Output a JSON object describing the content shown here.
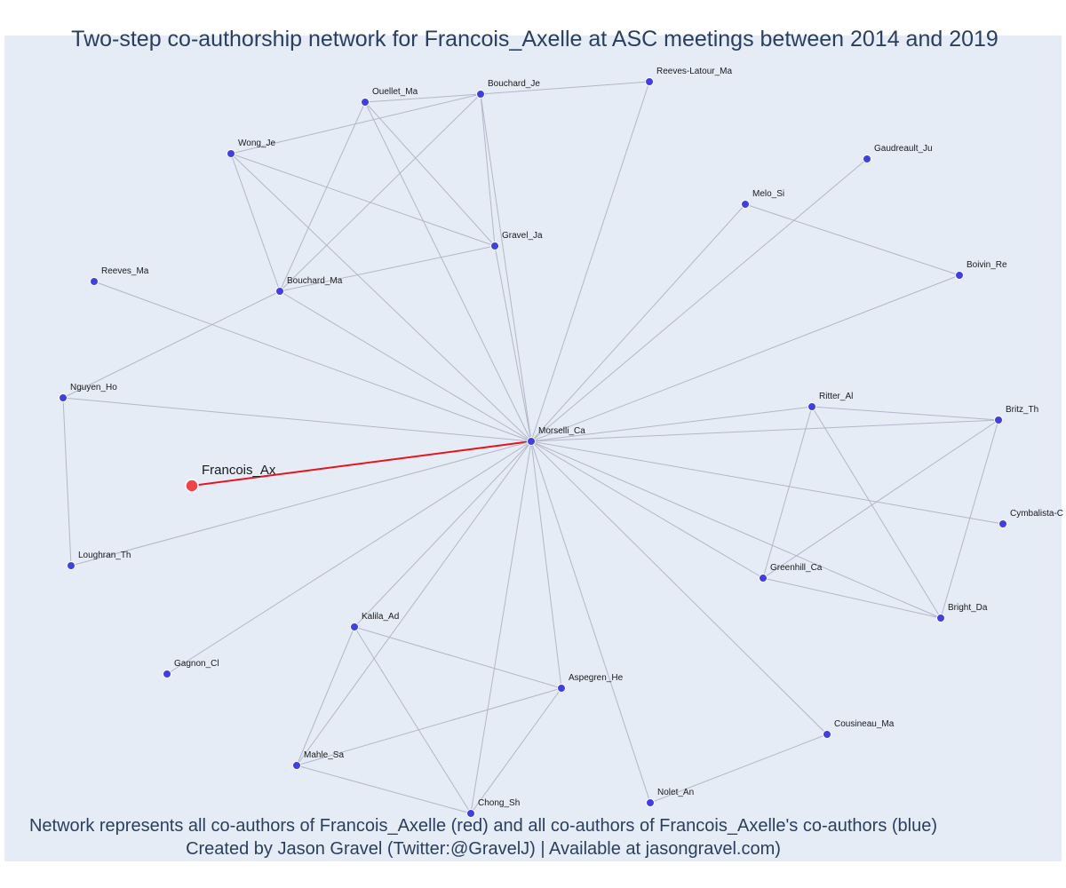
{
  "title": "Two-step co-authorship network for Francois_Axelle at ASC meetings between 2014 and 2019",
  "caption": {
    "line1": "Network represents all co-authors of Francois_Axelle (red) and all co-authors of Francois_Axelle's co-authors (blue)",
    "line2": "Created by Jason Gravel (Twitter:@GravelJ) | Available at jasongravel.com)"
  },
  "colors": {
    "focal": "#f0444a",
    "focal_edge": "#e8141b",
    "node": "#3f3fe8",
    "edge": "#b3b6c8",
    "background": "#e5ecf6"
  },
  "chart_data": {
    "type": "network",
    "focal_node": "Francois_Ax",
    "nodes": [
      "Francois_Ax",
      "Morselli_Ca",
      "Ouellet_Ma",
      "Bouchard_Je",
      "Reeves-Latour_Ma",
      "Wong_Je",
      "Gravel_Ja",
      "Bouchard_Ma",
      "Reeves_Ma",
      "Nguyen_Ho",
      "Loughran_Th",
      "Gagnon_Cl",
      "Kalila_Ad",
      "Mahle_Sa",
      "Chong_Sh",
      "Aspegren_He",
      "Nolet_An",
      "Cousineau_Ma",
      "Greenhill_Ca",
      "Bright_Da",
      "Ritter_Al",
      "Britz_Th",
      "Cymbalista-C",
      "Boivin_Re",
      "Melo_Si",
      "Gaudreault_Ju"
    ],
    "edges": [
      [
        "Francois_Ax",
        "Morselli_Ca"
      ],
      [
        "Morselli_Ca",
        "Ouellet_Ma"
      ],
      [
        "Morselli_Ca",
        "Bouchard_Je"
      ],
      [
        "Morselli_Ca",
        "Reeves-Latour_Ma"
      ],
      [
        "Morselli_Ca",
        "Wong_Je"
      ],
      [
        "Morselli_Ca",
        "Gravel_Ja"
      ],
      [
        "Morselli_Ca",
        "Bouchard_Ma"
      ],
      [
        "Morselli_Ca",
        "Reeves_Ma"
      ],
      [
        "Morselli_Ca",
        "Nguyen_Ho"
      ],
      [
        "Morselli_Ca",
        "Loughran_Th"
      ],
      [
        "Morselli_Ca",
        "Gagnon_Cl"
      ],
      [
        "Morselli_Ca",
        "Kalila_Ad"
      ],
      [
        "Morselli_Ca",
        "Mahle_Sa"
      ],
      [
        "Morselli_Ca",
        "Chong_Sh"
      ],
      [
        "Morselli_Ca",
        "Aspegren_He"
      ],
      [
        "Morselli_Ca",
        "Nolet_An"
      ],
      [
        "Morselli_Ca",
        "Cousineau_Ma"
      ],
      [
        "Morselli_Ca",
        "Greenhill_Ca"
      ],
      [
        "Morselli_Ca",
        "Bright_Da"
      ],
      [
        "Morselli_Ca",
        "Ritter_Al"
      ],
      [
        "Morselli_Ca",
        "Britz_Th"
      ],
      [
        "Morselli_Ca",
        "Cymbalista-C"
      ],
      [
        "Morselli_Ca",
        "Boivin_Re"
      ],
      [
        "Morselli_Ca",
        "Melo_Si"
      ],
      [
        "Morselli_Ca",
        "Gaudreault_Ju"
      ],
      [
        "Ouellet_Ma",
        "Bouchard_Je"
      ],
      [
        "Ouellet_Ma",
        "Gravel_Ja"
      ],
      [
        "Ouellet_Ma",
        "Bouchard_Ma"
      ],
      [
        "Bouchard_Je",
        "Reeves-Latour_Ma"
      ],
      [
        "Bouchard_Je",
        "Wong_Je"
      ],
      [
        "Bouchard_Je",
        "Gravel_Ja"
      ],
      [
        "Bouchard_Je",
        "Bouchard_Ma"
      ],
      [
        "Wong_Je",
        "Gravel_Ja"
      ],
      [
        "Wong_Je",
        "Bouchard_Ma"
      ],
      [
        "Gravel_Ja",
        "Bouchard_Ma"
      ],
      [
        "Bouchard_Ma",
        "Nguyen_Ho"
      ],
      [
        "Nguyen_Ho",
        "Loughran_Th"
      ],
      [
        "Melo_Si",
        "Boivin_Re"
      ],
      [
        "Ritter_Al",
        "Britz_Th"
      ],
      [
        "Ritter_Al",
        "Greenhill_Ca"
      ],
      [
        "Ritter_Al",
        "Bright_Da"
      ],
      [
        "Britz_Th",
        "Greenhill_Ca"
      ],
      [
        "Britz_Th",
        "Bright_Da"
      ],
      [
        "Greenhill_Ca",
        "Bright_Da"
      ],
      [
        "Kalila_Ad",
        "Aspegren_He"
      ],
      [
        "Kalila_Ad",
        "Mahle_Sa"
      ],
      [
        "Kalila_Ad",
        "Chong_Sh"
      ],
      [
        "Aspegren_He",
        "Mahle_Sa"
      ],
      [
        "Aspegren_He",
        "Chong_Sh"
      ],
      [
        "Mahle_Sa",
        "Chong_Sh"
      ],
      [
        "Nolet_An",
        "Cousineau_Ma"
      ]
    ]
  }
}
